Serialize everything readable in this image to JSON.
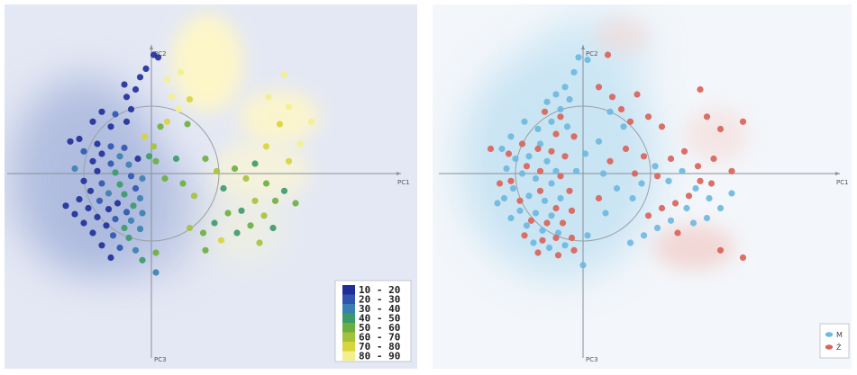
{
  "chart_data": [
    {
      "type": "scatter",
      "title": "",
      "xlabel": "PC1",
      "ylabel": "PC2",
      "ylabel_bottom": "PC3",
      "xlim": [
        -2.4,
        5.4
      ],
      "ylim": [
        -4.1,
        2.45
      ],
      "grid": false,
      "legend": "bottom-right",
      "color_legend": [
        {
          "label": "10 - 20",
          "color": "#1f2d9a"
        },
        {
          "label": "20 - 30",
          "color": "#2f55b0"
        },
        {
          "label": "30 - 40",
          "color": "#3a7fb0"
        },
        {
          "label": "40 - 50",
          "color": "#3a9a6a"
        },
        {
          "label": "50 - 60",
          "color": "#6cae3f"
        },
        {
          "label": "60 - 70",
          "color": "#a5c13b"
        },
        {
          "label": "70 - 80",
          "color": "#d7d43c"
        },
        {
          "label": "80 - 90",
          "color": "#f3ef8c"
        }
      ],
      "series": [
        {
          "points": [
            [
              0.05,
              2.4,
              0
            ],
            [
              0.15,
              2.35,
              0
            ],
            [
              -0.12,
              2.12,
              0
            ],
            [
              -0.25,
              1.95,
              0
            ],
            [
              -0.6,
              1.8,
              0
            ],
            [
              -0.35,
              1.7,
              0
            ],
            [
              -0.55,
              1.55,
              0
            ],
            [
              -0.45,
              1.3,
              0
            ],
            [
              -1.1,
              1.25,
              0
            ],
            [
              -0.8,
              1.2,
              1
            ],
            [
              -1.3,
              1.05,
              0
            ],
            [
              -0.55,
              1.05,
              0
            ],
            [
              -0.9,
              0.95,
              0
            ],
            [
              -1.6,
              0.7,
              0
            ],
            [
              -1.8,
              0.65,
              0
            ],
            [
              -1.2,
              0.6,
              0
            ],
            [
              -0.9,
              0.55,
              1
            ],
            [
              -0.6,
              0.52,
              1
            ],
            [
              -1.5,
              0.45,
              1
            ],
            [
              -1.1,
              0.4,
              0
            ],
            [
              -0.7,
              0.35,
              2
            ],
            [
              -0.3,
              0.3,
              0
            ],
            [
              -1.3,
              0.25,
              0
            ],
            [
              -0.9,
              0.2,
              1
            ],
            [
              -0.5,
              0.18,
              2
            ],
            [
              -1.7,
              0.1,
              2
            ],
            [
              -1.2,
              0.05,
              0
            ],
            [
              -0.8,
              0.02,
              3
            ],
            [
              -0.45,
              -0.05,
              1
            ],
            [
              -0.2,
              -0.1,
              2
            ],
            [
              -1.5,
              -0.15,
              0
            ],
            [
              -1.1,
              -0.2,
              1
            ],
            [
              -0.7,
              -0.22,
              3
            ],
            [
              -0.35,
              -0.3,
              1
            ],
            [
              -1.35,
              -0.35,
              0
            ],
            [
              -0.95,
              -0.4,
              2
            ],
            [
              -0.6,
              -0.42,
              3
            ],
            [
              -0.25,
              -0.5,
              2
            ],
            [
              -1.6,
              -0.52,
              0
            ],
            [
              -1.15,
              -0.55,
              1
            ],
            [
              -0.75,
              -0.6,
              0
            ],
            [
              -0.4,
              -0.65,
              3
            ],
            [
              -1.9,
              -0.65,
              0
            ],
            [
              -1.4,
              -0.7,
              0
            ],
            [
              -0.95,
              -0.72,
              0
            ],
            [
              -0.55,
              -0.78,
              1
            ],
            [
              -0.2,
              -0.8,
              2
            ],
            [
              -1.7,
              -0.82,
              0
            ],
            [
              -1.2,
              -0.88,
              0
            ],
            [
              -0.8,
              -0.92,
              1
            ],
            [
              -0.45,
              -0.95,
              2
            ],
            [
              -1.5,
              -1.0,
              0
            ],
            [
              -1.0,
              -1.05,
              0
            ],
            [
              -0.6,
              -1.1,
              3
            ],
            [
              -0.25,
              -1.12,
              2
            ],
            [
              -1.3,
              -1.2,
              0
            ],
            [
              -0.85,
              -1.25,
              1
            ],
            [
              -0.5,
              -1.3,
              3
            ],
            [
              -1.1,
              -1.45,
              0
            ],
            [
              -0.7,
              -1.5,
              1
            ],
            [
              -0.35,
              -1.55,
              2
            ],
            [
              -0.9,
              -1.7,
              0
            ],
            [
              -0.2,
              -1.75,
              3
            ],
            [
              0.1,
              -1.6,
              4
            ],
            [
              0.1,
              -2.0,
              2
            ],
            [
              0.05,
              0.55,
              5
            ],
            [
              0.1,
              0.25,
              4
            ],
            [
              -0.05,
              0.35,
              3
            ],
            [
              -0.15,
              0.75,
              6
            ],
            [
              0.2,
              0.95,
              4
            ],
            [
              0.65,
              2.05,
              7
            ],
            [
              0.35,
              1.9,
              7
            ],
            [
              0.45,
              1.55,
              7
            ],
            [
              0.85,
              1.5,
              6
            ],
            [
              0.6,
              1.3,
              7
            ],
            [
              0.35,
              1.05,
              6
            ],
            [
              0.8,
              1.0,
              4
            ],
            [
              0.3,
              -0.1,
              4
            ],
            [
              0.55,
              0.3,
              3
            ],
            [
              0.7,
              -0.2,
              4
            ],
            [
              0.95,
              -0.45,
              5
            ],
            [
              1.2,
              0.3,
              4
            ],
            [
              1.45,
              0.05,
              5
            ],
            [
              1.6,
              -0.3,
              3
            ],
            [
              1.85,
              0.1,
              4
            ],
            [
              2.1,
              -0.1,
              5
            ],
            [
              2.3,
              0.2,
              3
            ],
            [
              2.55,
              -0.2,
              4
            ],
            [
              2.3,
              -0.55,
              5
            ],
            [
              2.0,
              -0.75,
              3
            ],
            [
              1.7,
              -0.8,
              4
            ],
            [
              1.4,
              -1.0,
              3
            ],
            [
              1.15,
              -1.2,
              4
            ],
            [
              0.85,
              -1.1,
              5
            ],
            [
              1.55,
              -1.35,
              6
            ],
            [
              1.9,
              -1.2,
              3
            ],
            [
              2.2,
              -1.05,
              4
            ],
            [
              2.5,
              -0.85,
              5
            ],
            [
              2.75,
              -0.55,
              4
            ],
            [
              2.95,
              -0.35,
              3
            ],
            [
              3.2,
              -0.6,
              4
            ],
            [
              2.7,
              -1.1,
              3
            ],
            [
              2.4,
              -1.4,
              5
            ],
            [
              1.2,
              -1.55,
              4
            ],
            [
              3.05,
              0.25,
              6
            ],
            [
              3.3,
              0.6,
              7
            ],
            [
              2.85,
              1.0,
              6
            ],
            [
              2.55,
              0.55,
              6
            ],
            [
              3.55,
              1.05,
              7
            ],
            [
              3.05,
              1.35,
              7
            ],
            [
              2.6,
              1.55,
              7
            ],
            [
              2.95,
              2.0,
              7
            ]
          ]
        }
      ]
    },
    {
      "type": "scatter",
      "title": "",
      "xlabel": "PC1",
      "ylabel": "PC2",
      "ylabel_bottom": "PC3",
      "xlim": [
        -2.4,
        5.4
      ],
      "ylim": [
        -4.1,
        2.45
      ],
      "grid": false,
      "legend": "bottom-right",
      "series": [
        {
          "name": "M",
          "color": "#6fb8e0",
          "points": [
            [
              -0.1,
              2.35
            ],
            [
              0.1,
              2.3
            ],
            [
              -0.2,
              2.05
            ],
            [
              -0.4,
              1.75
            ],
            [
              -0.6,
              1.6
            ],
            [
              -0.3,
              1.5
            ],
            [
              -0.8,
              1.45
            ],
            [
              -0.5,
              1.3
            ],
            [
              -0.7,
              1.05
            ],
            [
              -0.35,
              0.95
            ],
            [
              -1.0,
              0.9
            ],
            [
              -1.3,
              1.05
            ],
            [
              -1.6,
              0.75
            ],
            [
              -1.8,
              0.5
            ],
            [
              -1.5,
              0.3
            ],
            [
              -1.2,
              0.35
            ],
            [
              -0.95,
              0.6
            ],
            [
              -0.8,
              0.25
            ],
            [
              -0.6,
              0.05
            ],
            [
              -1.7,
              0.1
            ],
            [
              -1.35,
              0.0
            ],
            [
              -1.05,
              -0.1
            ],
            [
              -0.7,
              -0.2
            ],
            [
              -1.55,
              -0.3
            ],
            [
              -1.2,
              -0.45
            ],
            [
              -0.85,
              -0.55
            ],
            [
              -0.5,
              -0.5
            ],
            [
              -1.9,
              -0.6
            ],
            [
              -1.4,
              -0.75
            ],
            [
              -1.05,
              -0.8
            ],
            [
              -0.7,
              -0.85
            ],
            [
              -1.6,
              -0.9
            ],
            [
              -1.25,
              -1.05
            ],
            [
              -0.9,
              -1.15
            ],
            [
              -0.55,
              -1.2
            ],
            [
              -1.1,
              -1.4
            ],
            [
              -0.75,
              -1.5
            ],
            [
              -0.4,
              -1.45
            ],
            [
              0.1,
              -1.25
            ],
            [
              0.0,
              -1.85
            ],
            [
              0.05,
              0.4
            ],
            [
              0.35,
              0.65
            ],
            [
              0.6,
              1.25
            ],
            [
              0.9,
              0.95
            ],
            [
              0.45,
              0.0
            ],
            [
              0.75,
              -0.3
            ],
            [
              1.1,
              -0.5
            ],
            [
              1.3,
              -0.2
            ],
            [
              1.6,
              0.15
            ],
            [
              1.9,
              -0.15
            ],
            [
              2.2,
              0.05
            ],
            [
              2.5,
              -0.3
            ],
            [
              2.8,
              -0.5
            ],
            [
              2.3,
              -0.7
            ],
            [
              1.95,
              -0.95
            ],
            [
              1.65,
              -1.1
            ],
            [
              1.35,
              -1.25
            ],
            [
              1.05,
              -1.4
            ],
            [
              2.45,
              -1.0
            ],
            [
              2.75,
              -0.9
            ],
            [
              3.05,
              -0.7
            ],
            [
              3.3,
              -0.4
            ],
            [
              0.5,
              -0.8
            ],
            [
              -0.15,
              0.05
            ],
            [
              -1.75,
              -0.5
            ]
          ]
        },
        {
          "name": "Ž",
          "color": "#d9645a",
          "points": [
            [
              0.55,
              2.4
            ],
            [
              0.35,
              1.75
            ],
            [
              0.65,
              1.55
            ],
            [
              0.85,
              1.3
            ],
            [
              1.2,
              1.6
            ],
            [
              1.05,
              1.05
            ],
            [
              1.45,
              1.15
            ],
            [
              1.75,
              0.95
            ],
            [
              -0.5,
              1.15
            ],
            [
              -0.85,
              1.25
            ],
            [
              -0.6,
              0.8
            ],
            [
              -0.2,
              0.75
            ],
            [
              -1.0,
              0.5
            ],
            [
              -1.35,
              0.6
            ],
            [
              -1.65,
              0.4
            ],
            [
              -2.05,
              0.5
            ],
            [
              -0.4,
              0.35
            ],
            [
              -0.7,
              0.45
            ],
            [
              -1.25,
              0.15
            ],
            [
              -0.95,
              0.05
            ],
            [
              -0.5,
              -0.05
            ],
            [
              -1.6,
              -0.15
            ],
            [
              -1.85,
              -0.2
            ],
            [
              -0.3,
              -0.35
            ],
            [
              -0.95,
              -0.35
            ],
            [
              -1.4,
              -0.55
            ],
            [
              -0.6,
              -0.7
            ],
            [
              -0.25,
              -0.75
            ],
            [
              -1.15,
              -0.95
            ],
            [
              -0.8,
              -1.0
            ],
            [
              -0.45,
              -1.0
            ],
            [
              -0.6,
              -1.3
            ],
            [
              -0.9,
              -1.35
            ],
            [
              -1.3,
              -1.25
            ],
            [
              -0.25,
              -1.3
            ],
            [
              -1.0,
              -1.6
            ],
            [
              -0.55,
              -1.65
            ],
            [
              -0.2,
              -1.55
            ],
            [
              0.35,
              -0.5
            ],
            [
              0.6,
              0.25
            ],
            [
              0.95,
              0.5
            ],
            [
              1.35,
              0.35
            ],
            [
              1.65,
              -0.05
            ],
            [
              1.95,
              0.3
            ],
            [
              2.25,
              0.45
            ],
            [
              2.55,
              0.15
            ],
            [
              2.9,
              0.3
            ],
            [
              3.3,
              0.05
            ],
            [
              2.6,
              -0.15
            ],
            [
              2.35,
              -0.45
            ],
            [
              2.05,
              -0.6
            ],
            [
              1.75,
              -0.7
            ],
            [
              1.45,
              -0.85
            ],
            [
              2.1,
              -1.2
            ],
            [
              2.85,
              -0.2
            ],
            [
              3.55,
              1.05
            ],
            [
              3.05,
              0.9
            ],
            [
              2.75,
              1.15
            ],
            [
              2.6,
              1.7
            ],
            [
              3.05,
              -1.55
            ],
            [
              3.55,
              -1.7
            ],
            [
              1.15,
              0.0
            ]
          ]
        }
      ]
    }
  ]
}
